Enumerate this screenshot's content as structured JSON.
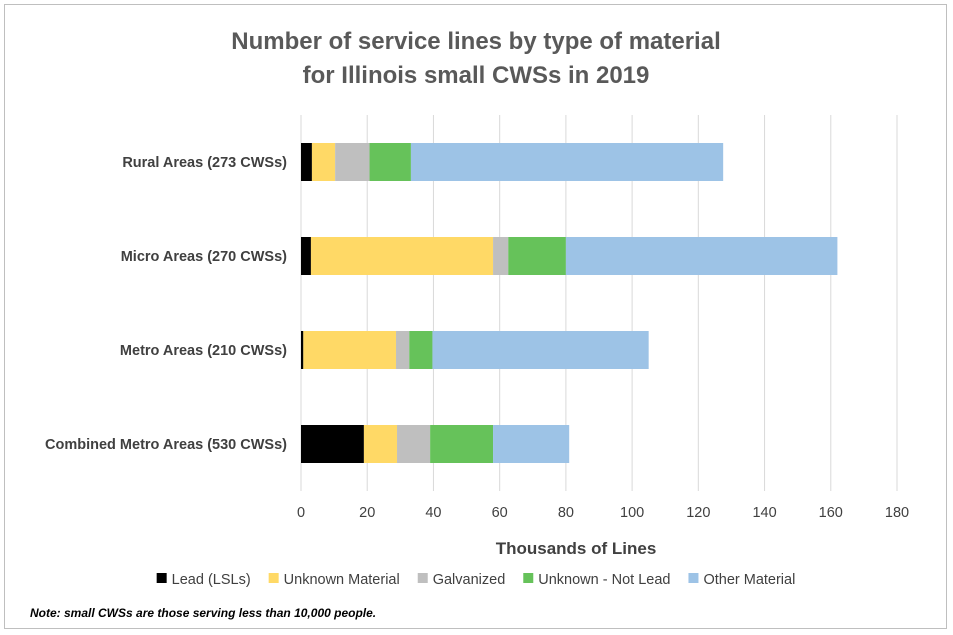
{
  "chart_data": {
    "type": "bar",
    "orientation": "horizontal",
    "stacked": true,
    "title_line1": "Number of service lines by type of material",
    "title_line2": "for Illinois small CWSs in 2019",
    "xlabel": "Thousands of Lines",
    "ylabel": "",
    "xlim": [
      0,
      180
    ],
    "x_ticks": [
      0,
      20,
      40,
      60,
      80,
      100,
      120,
      140,
      160,
      180
    ],
    "grid": true,
    "legend_position": "bottom",
    "categories": [
      "Rural Areas (273 CWSs)",
      "Micro Areas (270 CWSs)",
      "Metro Areas (210 CWSs)",
      "Combined Metro Areas (530 CWSs)"
    ],
    "series": [
      {
        "name": "Lead (LSLs)",
        "color": "#000000",
        "values": [
          3.3,
          3.0,
          0.7,
          19.0
        ]
      },
      {
        "name": "Unknown Material",
        "color": "#ffd966",
        "values": [
          7.0,
          55.0,
          28.0,
          10.0
        ]
      },
      {
        "name": "Galvanized",
        "color": "#bfbfbf",
        "values": [
          10.4,
          4.6,
          4.0,
          10.0
        ]
      },
      {
        "name": "Unknown - Not Lead",
        "color": "#66c25a",
        "values": [
          12.5,
          17.4,
          7.0,
          19.0
        ]
      },
      {
        "name": "Other Material",
        "color": "#9dc3e6",
        "values": [
          94.3,
          82.0,
          65.3,
          23.0
        ]
      }
    ],
    "note": "Note: small CWSs are those serving less than 10,000 people."
  }
}
